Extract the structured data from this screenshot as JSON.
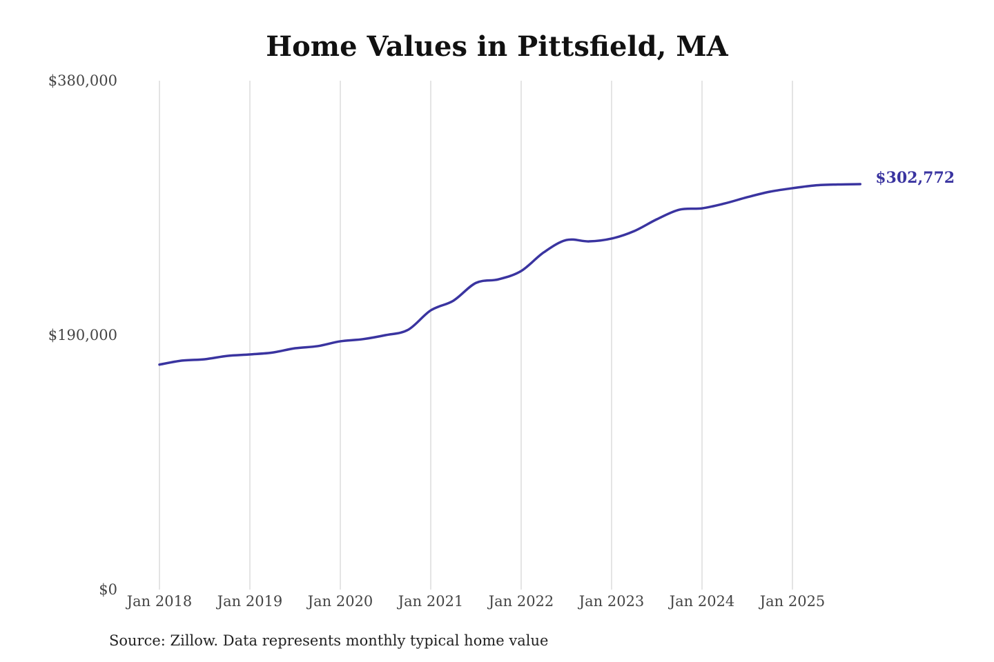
{
  "chart_data": {
    "type": "line",
    "title": "Home Values in Pittsfield, MA",
    "source": "Source: Zillow. Data represents monthly typical home value",
    "xlabel": "",
    "ylabel": "",
    "ylim": [
      0,
      380000
    ],
    "y_ticks": [
      {
        "value": 0,
        "label": "$0"
      },
      {
        "value": 190000,
        "label": "$190,000"
      },
      {
        "value": 380000,
        "label": "$380,000"
      }
    ],
    "x_ticks": [
      {
        "value": "2018-01",
        "label": "Jan 2018"
      },
      {
        "value": "2019-01",
        "label": "Jan 2019"
      },
      {
        "value": "2020-01",
        "label": "Jan 2020"
      },
      {
        "value": "2021-01",
        "label": "Jan 2021"
      },
      {
        "value": "2022-01",
        "label": "Jan 2022"
      },
      {
        "value": "2023-01",
        "label": "Jan 2023"
      },
      {
        "value": "2024-01",
        "label": "Jan 2024"
      },
      {
        "value": "2025-01",
        "label": "Jan 2025"
      }
    ],
    "grid": "vertical",
    "line_color": "#3a34a0",
    "end_label": "$302,772",
    "series": [
      {
        "x": [
          "2018-01",
          "2018-04",
          "2018-07",
          "2018-10",
          "2019-01",
          "2019-04",
          "2019-07",
          "2019-10",
          "2020-01",
          "2020-04",
          "2020-07",
          "2020-10",
          "2021-01",
          "2021-04",
          "2021-07",
          "2021-10",
          "2022-01",
          "2022-04",
          "2022-07",
          "2022-10",
          "2023-01",
          "2023-04",
          "2023-07",
          "2023-10",
          "2024-01",
          "2024-04",
          "2024-07",
          "2024-10",
          "2025-01",
          "2025-04",
          "2025-07",
          "2025-10"
        ],
        "y": [
          168000,
          171000,
          172000,
          174500,
          175600,
          177000,
          180200,
          181800,
          185400,
          187000,
          190000,
          194000,
          208500,
          215700,
          229000,
          231700,
          237900,
          251800,
          261000,
          260000,
          262100,
          267700,
          276500,
          283700,
          284700,
          288300,
          293000,
          297100,
          299700,
          301800,
          302500,
          302772
        ]
      }
    ]
  }
}
